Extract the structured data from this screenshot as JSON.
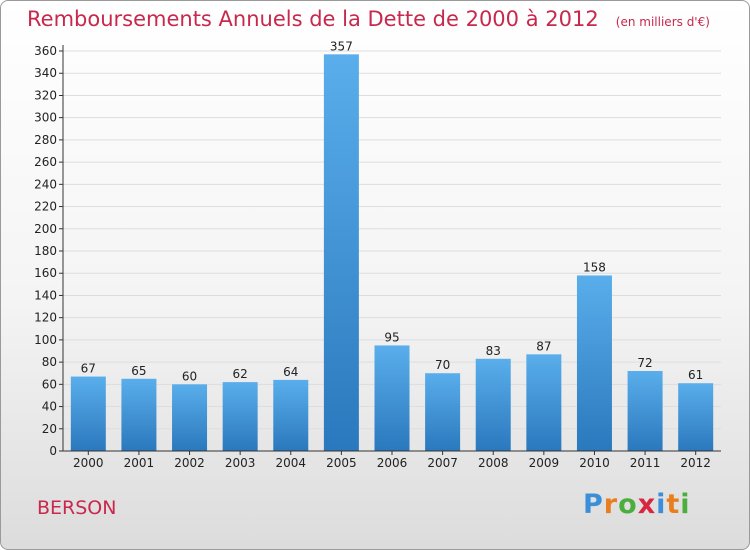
{
  "header": {
    "title": "Remboursements Annuels de la Dette de 2000 à 2012",
    "unit": "(en milliers d'€)"
  },
  "commune": "BERSON",
  "logo": {
    "letters": [
      "P",
      "r",
      "o",
      "x",
      "i",
      "t",
      "i"
    ],
    "colors": [
      "#3a8fd8",
      "#e87e1e",
      "#4cae3c",
      "#d7263d",
      "#3a8fd8",
      "#e87e1e",
      "#4cae3c"
    ]
  },
  "colors": {
    "title": "#c8284c",
    "bar_light": "#5aaeeb",
    "bar_dark": "#2a78bd",
    "grid": "#dddddd"
  },
  "chart_data": {
    "type": "bar",
    "categories": [
      "2000",
      "2001",
      "2002",
      "2003",
      "2004",
      "2005",
      "2006",
      "2007",
      "2008",
      "2009",
      "2010",
      "2011",
      "2012"
    ],
    "values": [
      67,
      65,
      60,
      62,
      64,
      357,
      95,
      70,
      83,
      87,
      158,
      72,
      61
    ],
    "data_labels": [
      "67",
      "65",
      "60",
      "62",
      "64",
      "357",
      "95",
      "70",
      "83",
      "87",
      "158",
      "72",
      "61"
    ],
    "ylim": [
      0,
      360
    ],
    "yticks": [
      0,
      20,
      40,
      60,
      80,
      100,
      120,
      140,
      160,
      180,
      200,
      220,
      240,
      260,
      280,
      300,
      320,
      340,
      360
    ],
    "grid": true
  }
}
